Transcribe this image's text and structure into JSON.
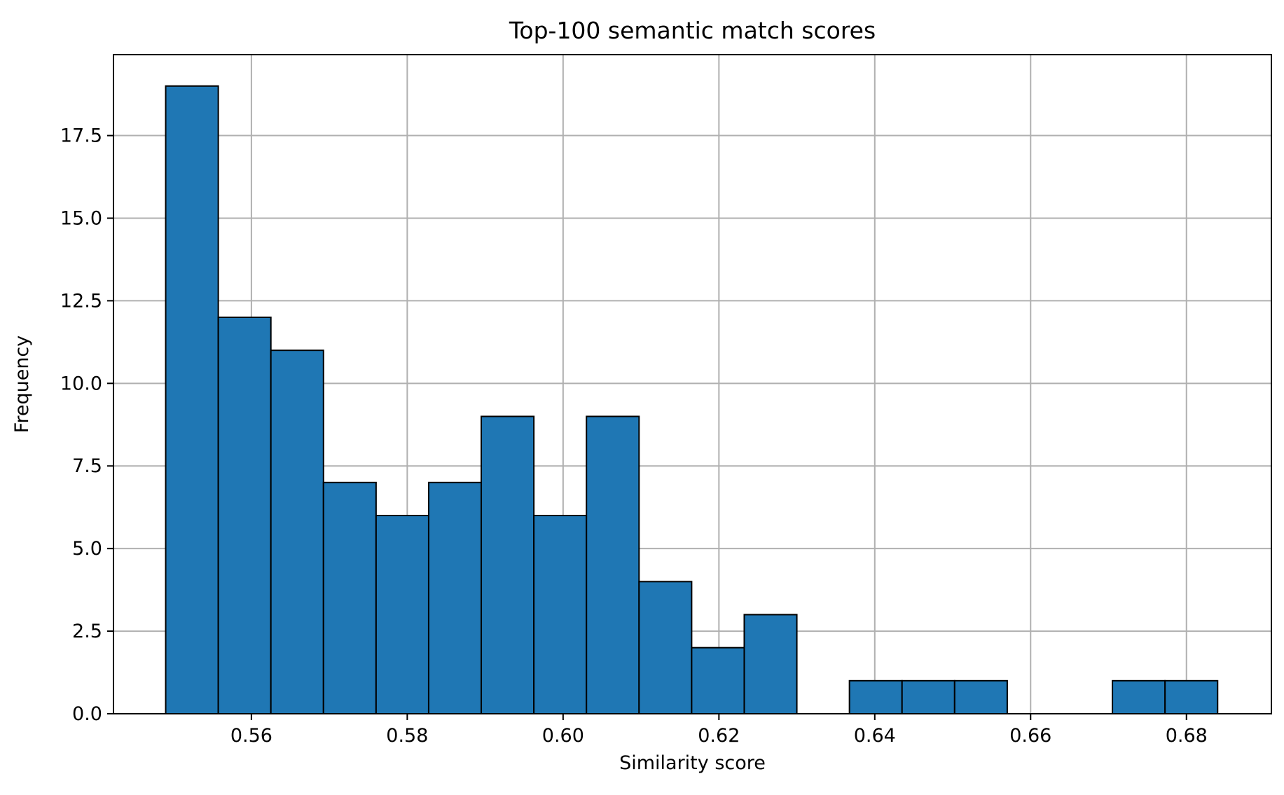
{
  "chart_data": {
    "type": "bar",
    "title": "Top-100 semantic match scores",
    "xlabel": "Similarity score",
    "ylabel": "Frequency",
    "xlim": [
      0.5423,
      0.6909
    ],
    "ylim": [
      0,
      19.95
    ],
    "xticks": [
      "0.56",
      "0.58",
      "0.60",
      "0.62",
      "0.64",
      "0.66",
      "0.68"
    ],
    "xtick_values": [
      0.56,
      0.58,
      0.6,
      0.62,
      0.64,
      0.66,
      0.68
    ],
    "yticks": [
      "0.0",
      "2.5",
      "5.0",
      "7.5",
      "10.0",
      "12.5",
      "15.0",
      "17.5"
    ],
    "ytick_values": [
      0.0,
      2.5,
      5.0,
      7.5,
      10.0,
      12.5,
      15.0,
      17.5
    ],
    "bin_start": 0.549,
    "bin_width": 0.00675,
    "values": [
      19,
      12,
      11,
      7,
      6,
      7,
      9,
      6,
      9,
      4,
      2,
      3,
      0,
      1,
      1,
      1,
      0,
      0,
      1,
      1
    ],
    "grid": true,
    "colors": {
      "bar_fill": "#1f77b4",
      "bar_edge": "#000000",
      "grid": "#b0b0b0"
    }
  }
}
